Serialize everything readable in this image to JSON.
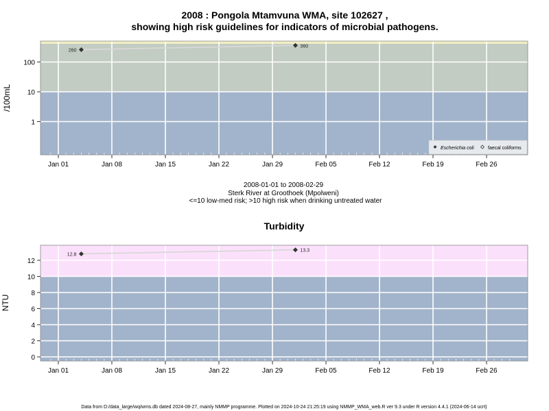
{
  "colors": {
    "low_band": "#a2b4cb",
    "high_band_micro": "#c2ccc2",
    "high_band_turb": "#fbe0fb",
    "top_strip": "#f1efc4",
    "grid": "#ffffff",
    "line": "#d8d8d8",
    "marker": "#333333"
  },
  "chart_data": [
    {
      "type": "scatter",
      "title": "2008 : Pongola Mtamvuna WMA, site 102627 ,",
      "subtitle": "showing high risk guidelines for indicators of microbial pathogens.",
      "xlabel_lines": [
        "2008-01-01 to 2008-02-29",
        "Sterk River at Groothoek (Mpolweni)",
        "<=10 low-med risk; >10 high risk when drinking untreated water"
      ],
      "ylabel": "/100mL",
      "yscale": "log",
      "threshold": 10,
      "x_ticks": [
        "Jan 01",
        "Jan 08",
        "Jan 15",
        "Jan 22",
        "Jan 29",
        "Feb 05",
        "Feb 12",
        "Feb 19",
        "Feb 26"
      ],
      "y_ticks": [
        "1",
        "10",
        "100"
      ],
      "y_tick_values": [
        1,
        10,
        100
      ],
      "grid": true,
      "legend_position": "bottom-right",
      "legend": [
        "Escherichia coli",
        "faecal coliforms"
      ],
      "series": [
        {
          "name": "Escherichia coli",
          "marker": "filled-diamond",
          "points": [
            {
              "x": "2008-01-04",
              "y": 260,
              "label": "260"
            },
            {
              "x": "2008-02-01",
              "y": 360,
              "label": "360"
            }
          ]
        }
      ]
    },
    {
      "type": "scatter",
      "title": "Turbidity",
      "ylabel": "NTU",
      "yscale": "linear",
      "threshold": 10,
      "x_ticks": [
        "Jan 01",
        "Jan 08",
        "Jan 15",
        "Jan 22",
        "Jan 29",
        "Feb 05",
        "Feb 12",
        "Feb 19",
        "Feb 26"
      ],
      "y_ticks": [
        "0",
        "2",
        "4",
        "6",
        "8",
        "10",
        "12"
      ],
      "y_tick_values": [
        0,
        2,
        4,
        6,
        8,
        10,
        12
      ],
      "grid": true,
      "series": [
        {
          "name": "Turbidity",
          "marker": "filled-diamond",
          "points": [
            {
              "x": "2008-01-04",
              "y": 12.8,
              "label": "12.8"
            },
            {
              "x": "2008-02-01",
              "y": 13.3,
              "label": "13.3"
            }
          ]
        }
      ]
    }
  ],
  "footer": "Data from D:/data_large/wq/wms.db dated 2024-08-27, mainly NMMP programme. Plotted on 2024-10-24 21:25:19 using NMMP_WMA_web.R ver 9.3 under R version 4.4.1 (2024-06-14 ucrt)"
}
